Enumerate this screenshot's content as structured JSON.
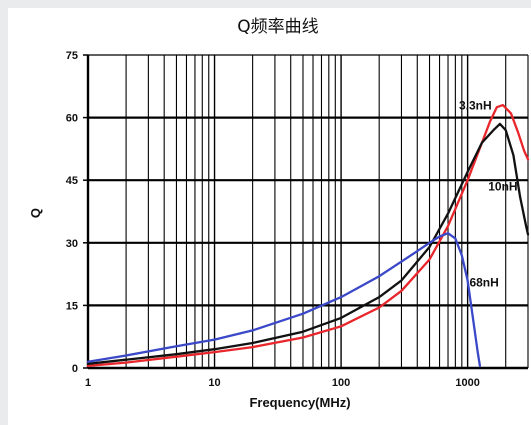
{
  "chart_data": {
    "type": "line",
    "title": "Q频率曲线",
    "xlabel": "Frequency(MHz)",
    "ylabel": "Q",
    "x_scale": "log",
    "xlim": [
      1,
      3000
    ],
    "ylim": [
      0,
      75
    ],
    "x_ticks": [
      "1",
      "10",
      "100",
      "1000"
    ],
    "y_ticks": [
      "0",
      "15",
      "30",
      "45",
      "60",
      "75"
    ],
    "grid": true,
    "series": [
      {
        "name": "3.3nH",
        "color": "#e8262b",
        "points": [
          [
            1,
            0.5
          ],
          [
            2,
            1.3
          ],
          [
            5,
            2.7
          ],
          [
            10,
            3.8
          ],
          [
            20,
            5.0
          ],
          [
            50,
            7.3
          ],
          [
            100,
            10.0
          ],
          [
            200,
            14.5
          ],
          [
            300,
            18.5
          ],
          [
            500,
            26.0
          ],
          [
            700,
            34.0
          ],
          [
            1000,
            45.0
          ],
          [
            1300,
            54.0
          ],
          [
            1500,
            59.0
          ],
          [
            1700,
            62.5
          ],
          [
            1900,
            63.0
          ],
          [
            2200,
            61.0
          ],
          [
            2500,
            56.5
          ],
          [
            2800,
            52.0
          ],
          [
            3000,
            50.0
          ]
        ]
      },
      {
        "name": "10nH",
        "color": "#111111",
        "points": [
          [
            1,
            1.0
          ],
          [
            2,
            2.0
          ],
          [
            5,
            3.3
          ],
          [
            10,
            4.5
          ],
          [
            20,
            6.0
          ],
          [
            50,
            8.7
          ],
          [
            100,
            12.0
          ],
          [
            200,
            17.0
          ],
          [
            300,
            21.0
          ],
          [
            500,
            29.0
          ],
          [
            700,
            37.0
          ],
          [
            1000,
            47.0
          ],
          [
            1300,
            54.0
          ],
          [
            1600,
            57.0
          ],
          [
            1800,
            58.5
          ],
          [
            2000,
            57.0
          ],
          [
            2300,
            51.0
          ],
          [
            2600,
            41.0
          ],
          [
            2900,
            34.0
          ],
          [
            3000,
            32.0
          ]
        ]
      },
      {
        "name": "68nH",
        "color": "#3b48c8",
        "points": [
          [
            1,
            1.5
          ],
          [
            2,
            3.0
          ],
          [
            5,
            5.2
          ],
          [
            10,
            6.8
          ],
          [
            20,
            9.0
          ],
          [
            50,
            13.0
          ],
          [
            100,
            17.0
          ],
          [
            200,
            22.0
          ],
          [
            300,
            25.5
          ],
          [
            400,
            28.0
          ],
          [
            500,
            30.0
          ],
          [
            600,
            31.5
          ],
          [
            700,
            32.3
          ],
          [
            800,
            31.0
          ],
          [
            900,
            27.0
          ],
          [
            1000,
            21.0
          ],
          [
            1100,
            12.0
          ],
          [
            1200,
            4.0
          ],
          [
            1250,
            0.5
          ]
        ]
      }
    ]
  }
}
